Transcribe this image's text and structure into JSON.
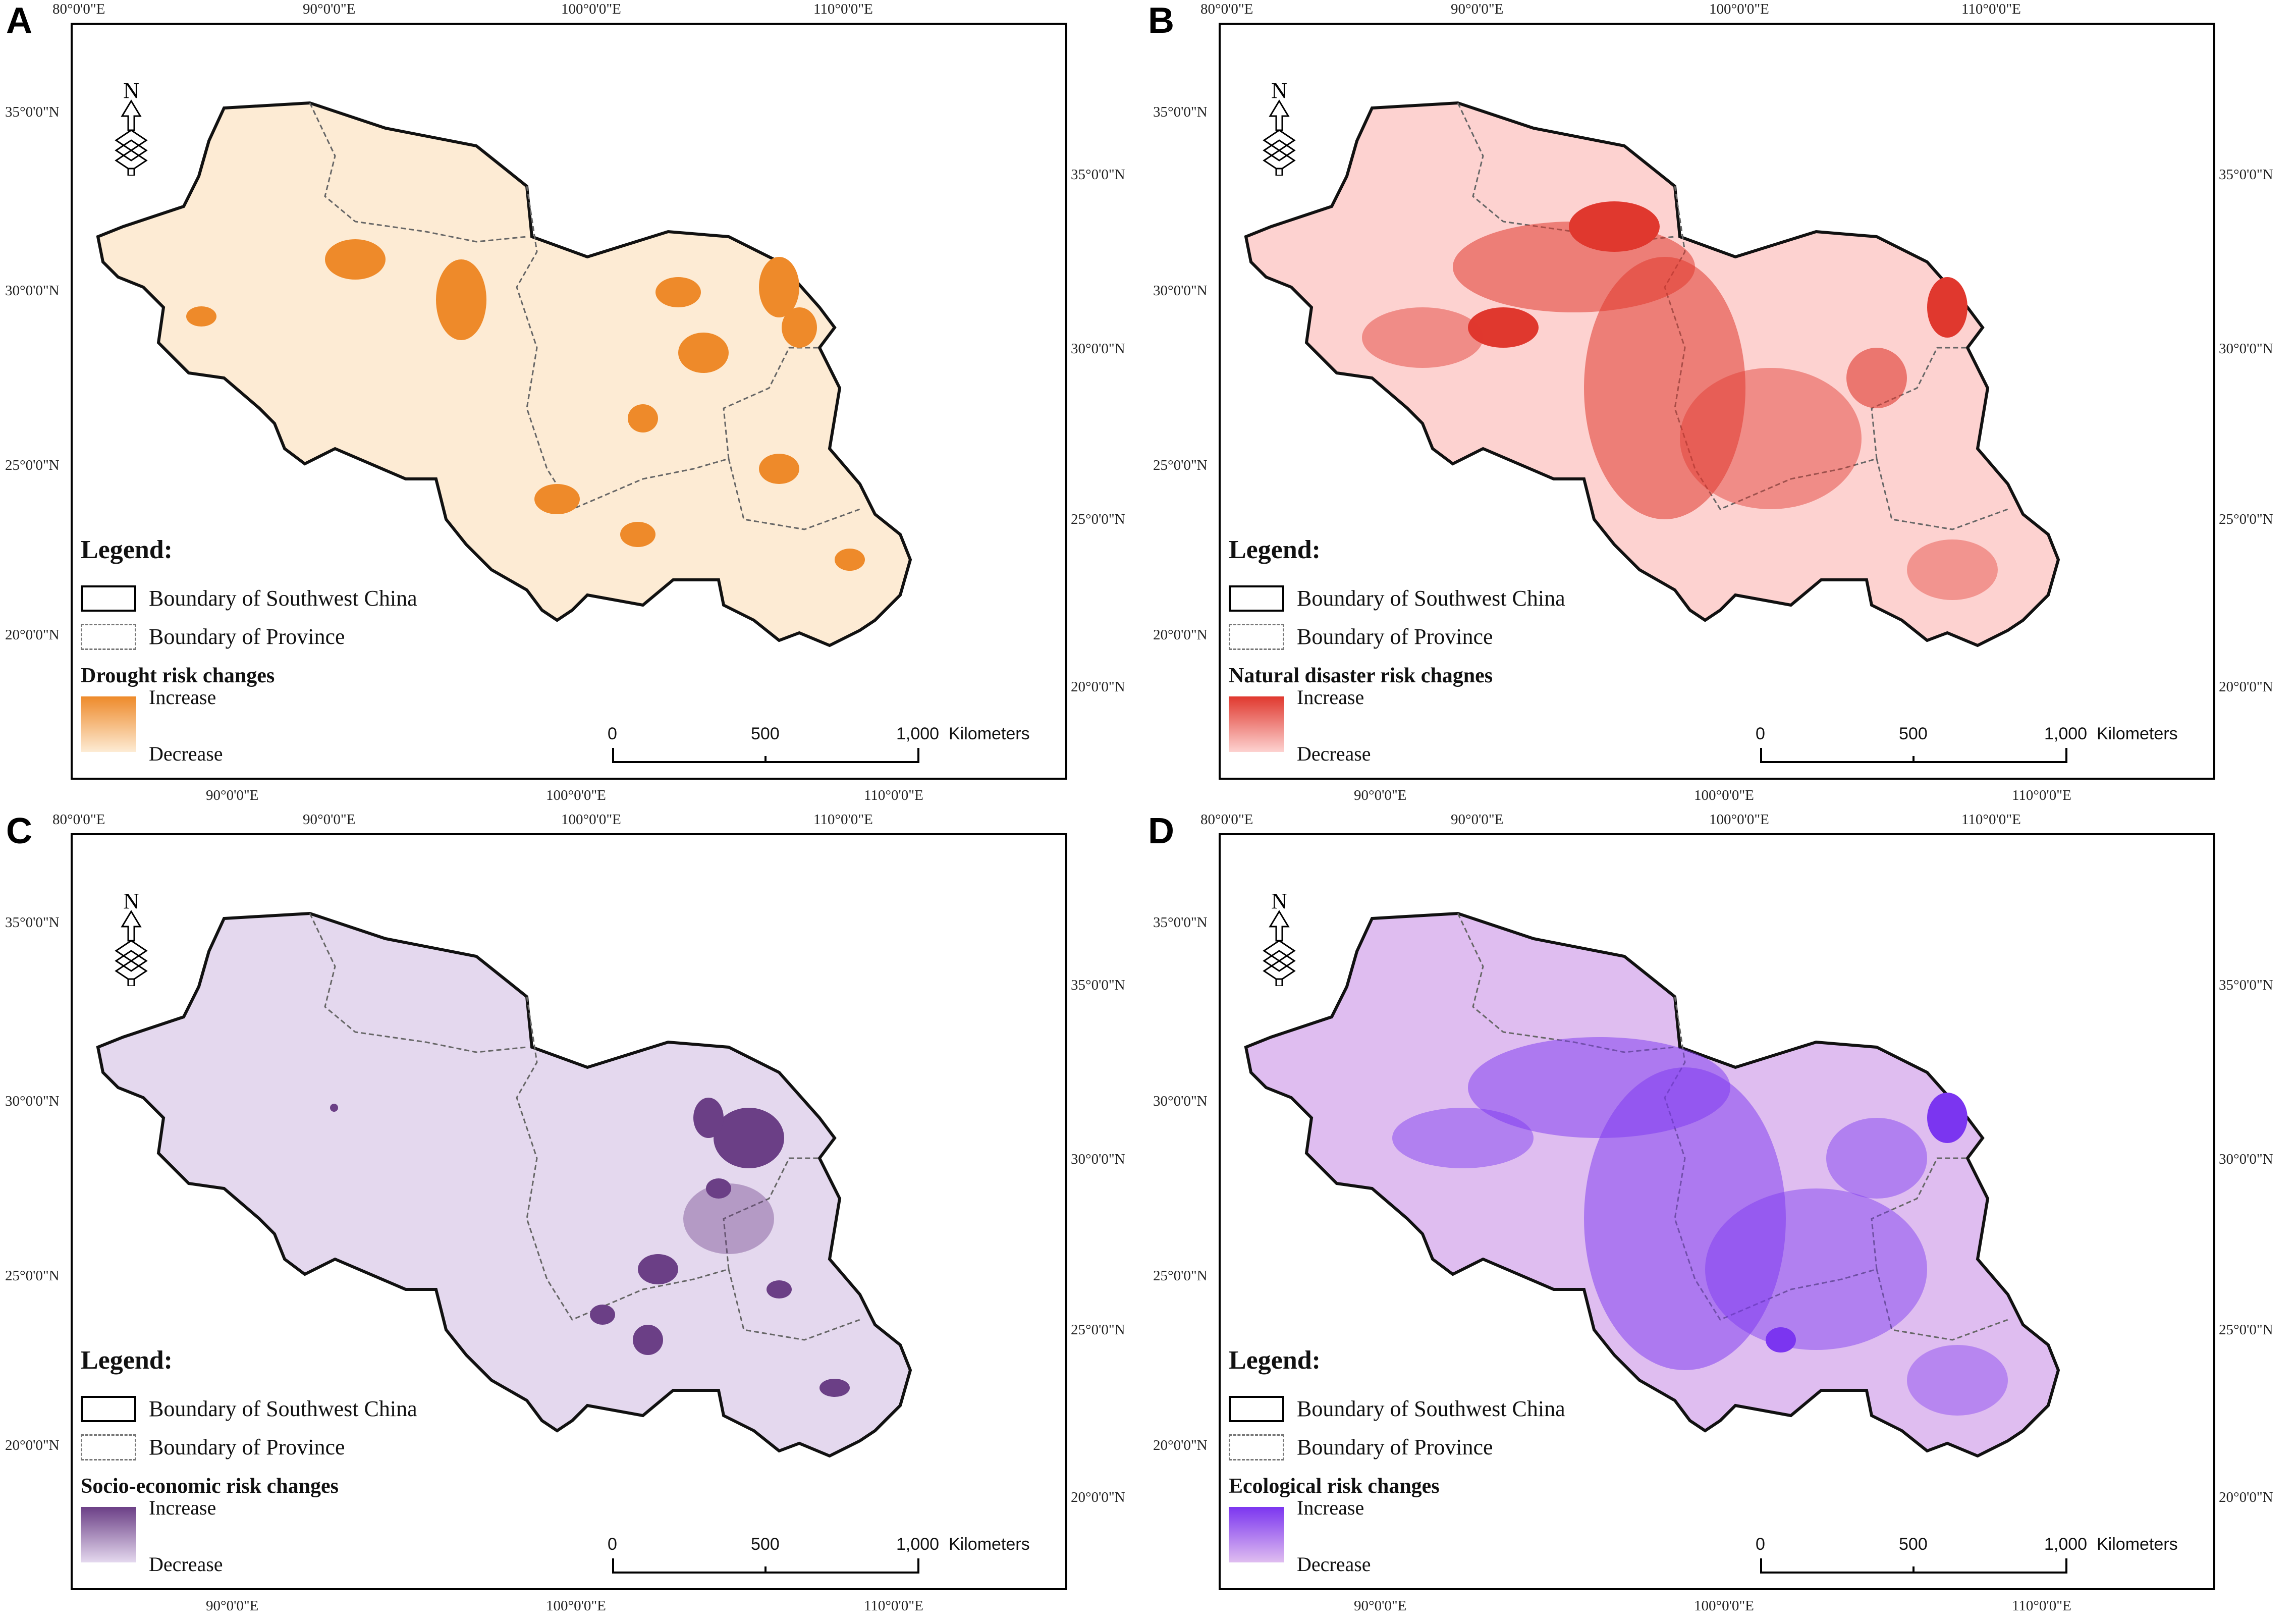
{
  "axes": {
    "top": [
      "80°0'0\"E",
      "90°0'0\"E",
      "100°0'0\"E",
      "110°0'0\"E"
    ],
    "bottom": [
      "90°0'0\"E",
      "100°0'0\"E",
      "110°0'0\"E"
    ],
    "left": [
      "35°0'0\"N",
      "30°0'0\"N",
      "25°0'0\"N",
      "20°0'0\"N"
    ],
    "right": [
      "35°0'0\"N",
      "30°0'0\"N",
      "25°0'0\"N",
      "20°0'0\"N"
    ]
  },
  "legend": {
    "title": "Legend:",
    "boundary_sw": "Boundary of Southwest China",
    "boundary_province": "Boundary of Province",
    "increase": "Increase",
    "decrease": "Decrease"
  },
  "scale": {
    "zero": "0",
    "mid": "500",
    "end": "1,000",
    "unit": "Kilometers"
  },
  "north_label": "N",
  "panels": [
    {
      "letter": "A",
      "ramp_title": "Drought risk changes",
      "color_high": "#ee8a2a",
      "color_low": "#fdebd4"
    },
    {
      "letter": "B",
      "ramp_title": "Natural disaster risk chagnes",
      "color_high": "#e0382e",
      "color_low": "#fdd2d0"
    },
    {
      "letter": "C",
      "ramp_title": "Socio-economic risk changes",
      "color_high": "#6b3f86",
      "color_low": "#e4d8ee"
    },
    {
      "letter": "D",
      "ramp_title": "Ecological risk changes",
      "color_high": "#7b35f0",
      "color_low": "#dfbdf0"
    }
  ]
}
